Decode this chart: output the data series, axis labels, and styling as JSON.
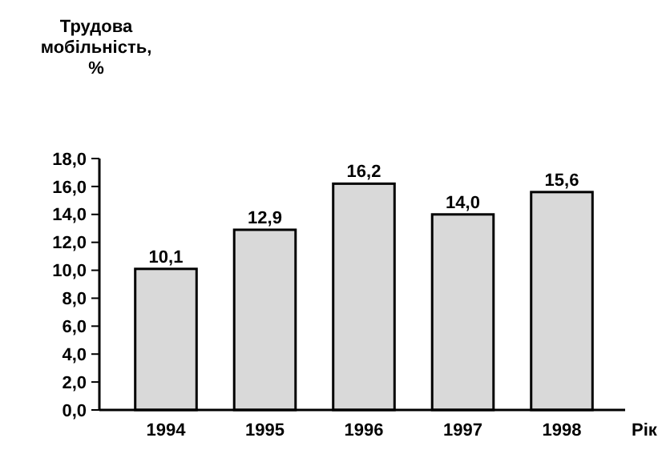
{
  "chart_data": {
    "type": "bar",
    "ylabel": "Трудова мобільність, %",
    "xlabel": "Рік",
    "categories": [
      "1994",
      "1995",
      "1996",
      "1997",
      "1998"
    ],
    "values": [
      10.1,
      12.9,
      16.2,
      14.0,
      15.6
    ],
    "value_labels": [
      "10,1",
      "12,9",
      "16,2",
      "14,0",
      "15,6"
    ],
    "color": "#d9d9d9",
    "ylim": [
      0,
      18
    ],
    "yticks": [
      {
        "value": 0,
        "label": "0,0"
      },
      {
        "value": 2,
        "label": "2,0"
      },
      {
        "value": 4,
        "label": "4,0"
      },
      {
        "value": 6,
        "label": "6,0"
      },
      {
        "value": 8,
        "label": "8,0"
      },
      {
        "value": 10,
        "label": "10,0"
      },
      {
        "value": 12,
        "label": "12,0"
      },
      {
        "value": 14,
        "label": "14,0"
      },
      {
        "value": 16,
        "label": "16,0"
      },
      {
        "value": 18,
        "label": "18,0"
      }
    ],
    "grid": false
  }
}
